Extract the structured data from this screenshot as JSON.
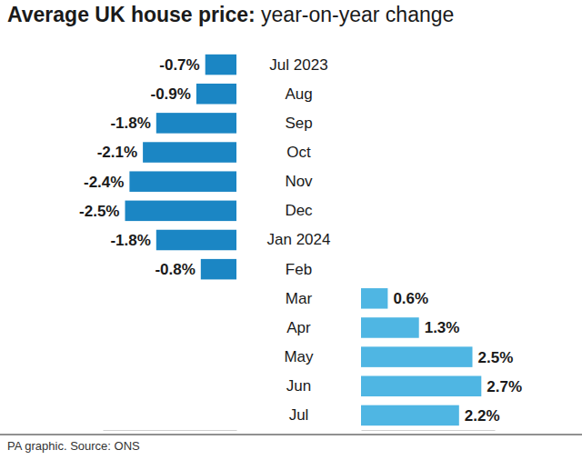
{
  "chart_data": {
    "type": "bar",
    "orientation": "horizontal",
    "title": "Average UK house price: year-on-year change",
    "caption": "PA graphic. Source: ONS",
    "categories": [
      "Jul 2023",
      "Aug",
      "Sep",
      "Oct",
      "Nov",
      "Dec",
      "Jan 2024",
      "Feb",
      "Mar",
      "Apr",
      "May",
      "Jun",
      "Jul"
    ],
    "values": [
      -0.7,
      -0.9,
      -1.8,
      -2.1,
      -2.4,
      -2.5,
      -1.8,
      -0.8,
      0.6,
      1.3,
      2.5,
      2.7,
      2.2
    ],
    "value_labels": [
      "-0.7%",
      "-0.9%",
      "-1.8%",
      "-2.1%",
      "-2.4%",
      "-2.5%",
      "-1.8%",
      "-0.8%",
      "0.6%",
      "1.3%",
      "2.5%",
      "2.7%",
      "2.2%"
    ],
    "colors": [
      "#1b86c4",
      "#1b86c4",
      "#1b86c4",
      "#1b86c4",
      "#1b86c4",
      "#1b86c4",
      "#1b86c4",
      "#1b86c4",
      "#4fb6e3",
      "#4fb6e3",
      "#4fb6e3",
      "#4fb6e3",
      "#4fb6e3"
    ],
    "ylim": [
      -3,
      3
    ],
    "data_labels": true,
    "tick_labels": "x",
    "grid": false
  }
}
